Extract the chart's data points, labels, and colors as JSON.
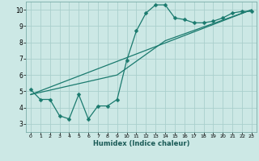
{
  "xlabel": "Humidex (Indice chaleur)",
  "ylabel": "",
  "background_color": "#cce8e5",
  "grid_color": "#aacfcc",
  "line_color": "#1a7a6e",
  "xlim": [
    -0.5,
    23.5
  ],
  "ylim": [
    2.5,
    10.5
  ],
  "xticks": [
    0,
    1,
    2,
    3,
    4,
    5,
    6,
    7,
    8,
    9,
    10,
    11,
    12,
    13,
    14,
    15,
    16,
    17,
    18,
    19,
    20,
    21,
    22,
    23
  ],
  "yticks": [
    3,
    4,
    5,
    6,
    7,
    8,
    9,
    10
  ],
  "series1_x": [
    0,
    1,
    2,
    3,
    4,
    5,
    6,
    7,
    8,
    9,
    10,
    11,
    12,
    13,
    14,
    15,
    16,
    17,
    18,
    19,
    20,
    21,
    22,
    23
  ],
  "series1_y": [
    5.1,
    4.5,
    4.5,
    3.5,
    3.3,
    4.8,
    3.3,
    4.1,
    4.1,
    4.5,
    6.9,
    8.7,
    9.8,
    10.3,
    10.3,
    9.5,
    9.4,
    9.2,
    9.2,
    9.3,
    9.5,
    9.8,
    9.9,
    9.9
  ],
  "series2_x": [
    0,
    23
  ],
  "series2_y": [
    4.8,
    10.0
  ],
  "series3_x": [
    0,
    9,
    14,
    23
  ],
  "series3_y": [
    4.8,
    6.0,
    8.1,
    10.0
  ],
  "marker_size": 2.5,
  "linewidth": 0.9
}
